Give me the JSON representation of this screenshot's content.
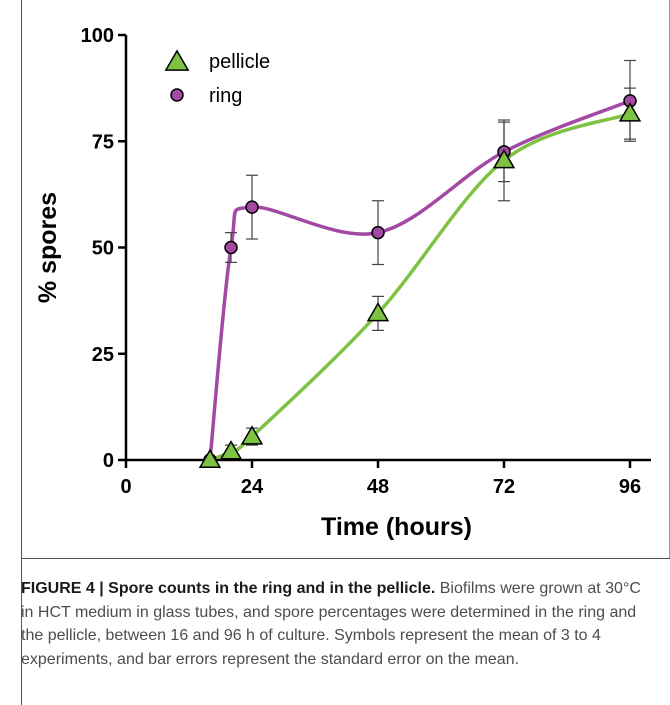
{
  "chart_data": {
    "type": "line",
    "xlabel": "Time (hours)",
    "ylabel": "% spores",
    "xlim": [
      0,
      100
    ],
    "ylim": [
      0,
      100
    ],
    "x_ticks": [
      0,
      24,
      48,
      72,
      96
    ],
    "y_ticks": [
      0,
      25,
      50,
      75,
      100
    ],
    "grid": false,
    "legend_position": "top-left",
    "series": [
      {
        "name": "pellicle",
        "marker": "triangle",
        "color": "#7dc242",
        "x": [
          16,
          20,
          24,
          48,
          72,
          96
        ],
        "y": [
          0,
          2,
          5.5,
          34.5,
          70.5,
          81.5
        ],
        "err": [
          0,
          1.5,
          2,
          4,
          9.5,
          6
        ]
      },
      {
        "name": "ring",
        "marker": "circle",
        "color": "#a349a4",
        "x": [
          16,
          20,
          24,
          48,
          72,
          96
        ],
        "y": [
          0,
          50,
          59.5,
          53.5,
          72.5,
          84.5
        ],
        "err": [
          0,
          3.5,
          7.5,
          7.5,
          7,
          9.5
        ]
      }
    ]
  },
  "caption": {
    "lead": "FIGURE 4 | Spore counts in the ring and in the pellicle.",
    "body": " Biofilms were grown at 30°C in HCT medium in glass tubes, and spore percentages were determined in the ring and the pellicle, between 16 and 96 h of culture. Symbols represent the mean of 3 to 4 experiments, and bar errors represent the standard error on the mean."
  }
}
